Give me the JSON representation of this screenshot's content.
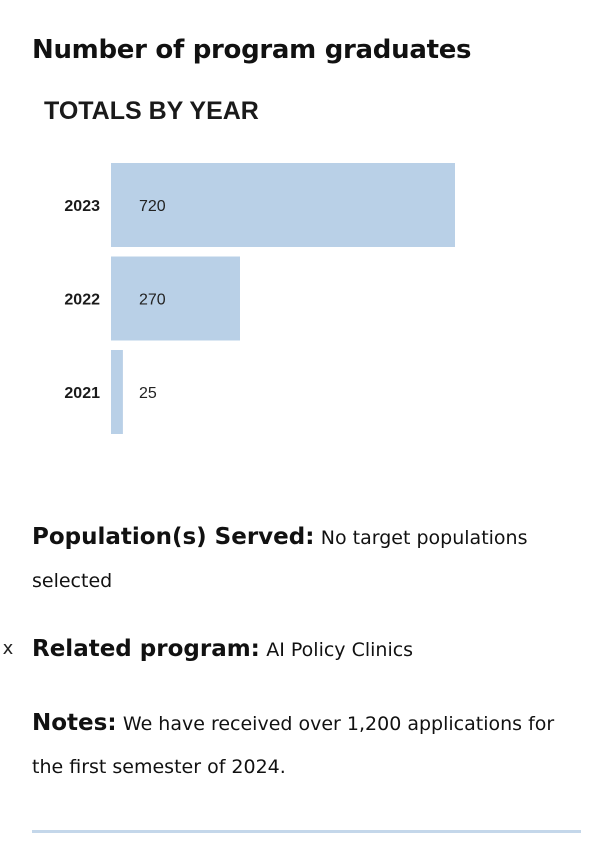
{
  "heading": "Number of program graduates",
  "chart_data": {
    "type": "bar",
    "orientation": "horizontal",
    "title": "TOTALS BY YEAR",
    "categories": [
      "2023",
      "2022",
      "2021"
    ],
    "values": [
      720,
      270,
      25
    ],
    "value_labels": [
      "720",
      "270",
      "25"
    ],
    "xlim": [
      0,
      720
    ],
    "grid": false,
    "legend": "none",
    "bar_color": "#b9d0e7"
  },
  "info": {
    "population_label": "Population(s) Served:",
    "population_value": "No target populations selected",
    "related_label": "Related program:",
    "related_value": "AI Policy Clinics",
    "remove_label": "x",
    "notes_label": "Notes:",
    "notes_value": "We have received over 1,200 applications for the first semester of 2024."
  },
  "colors": {
    "divider": "#c4d7ea"
  }
}
